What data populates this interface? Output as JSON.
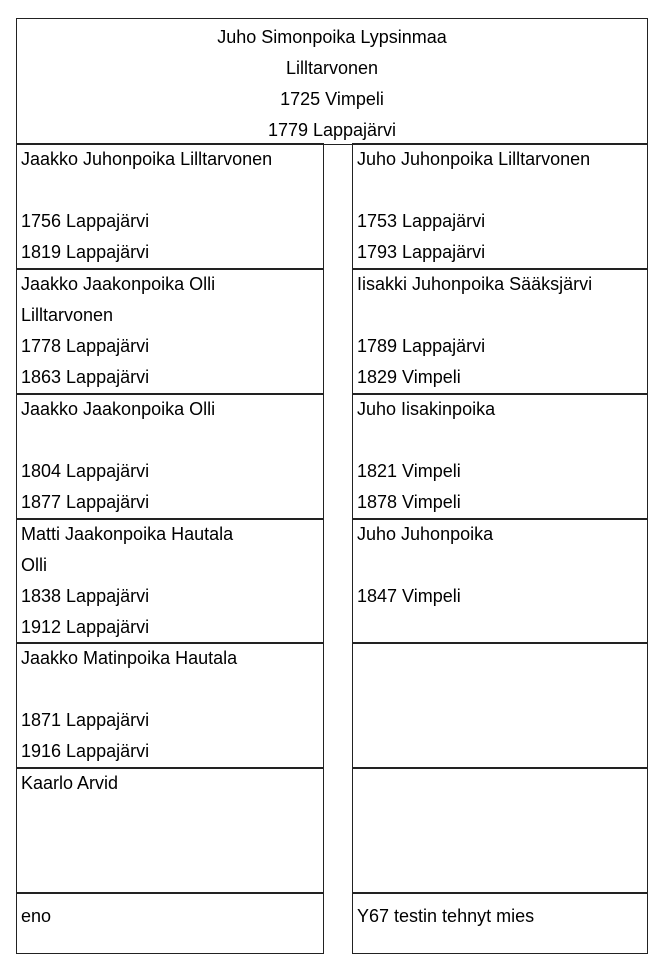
{
  "root": {
    "lines": [
      "Juho Simonpoika Lypsinmaa",
      "Lilltarvonen",
      "1725 Vimpeli",
      "1779 Lappajärvi"
    ]
  },
  "left_column": [
    {
      "lines": [
        "Jaakko Juhonpoika Lilltarvonen",
        "",
        "1756 Lappajärvi",
        "1819 Lappajärvi"
      ]
    },
    {
      "lines": [
        "Jaakko Jaakonpoika Olli",
        "Lilltarvonen",
        "1778 Lappajärvi",
        "1863 Lappajärvi"
      ]
    },
    {
      "lines": [
        "Jaakko Jaakonpoika Olli",
        "",
        "1804 Lappajärvi",
        "1877 Lappajärvi"
      ]
    },
    {
      "lines": [
        "Matti Jaakonpoika Hautala",
        "Olli",
        "1838 Lappajärvi",
        "1912 Lappajärvi"
      ]
    },
    {
      "lines": [
        "Jaakko Matinpoika Hautala",
        "",
        "1871 Lappajärvi",
        "1916 Lappajärvi"
      ]
    },
    {
      "lines": [
        "Kaarlo Arvid",
        "",
        "",
        ""
      ]
    },
    {
      "lines": [
        "eno"
      ]
    }
  ],
  "right_column": [
    {
      "lines": [
        "Juho Juhonpoika Lilltarvonen",
        "",
        "1753 Lappajärvi",
        "1793 Lappajärvi"
      ]
    },
    {
      "lines": [
        "Iisakki Juhonpoika Sääksjärvi",
        "",
        "1789 Lappajärvi",
        "1829 Vimpeli"
      ]
    },
    {
      "lines": [
        "Juho Iisakinpoika",
        "",
        "1821 Vimpeli",
        "1878 Vimpeli"
      ]
    },
    {
      "lines": [
        "Juho Juhonpoika",
        "",
        "1847 Vimpeli",
        ""
      ]
    },
    {
      "lines": [
        "",
        "",
        "",
        ""
      ]
    },
    {
      "lines": [
        "",
        "",
        "",
        ""
      ]
    },
    {
      "lines": [
        "Y67 testin tehnyt mies"
      ]
    }
  ]
}
